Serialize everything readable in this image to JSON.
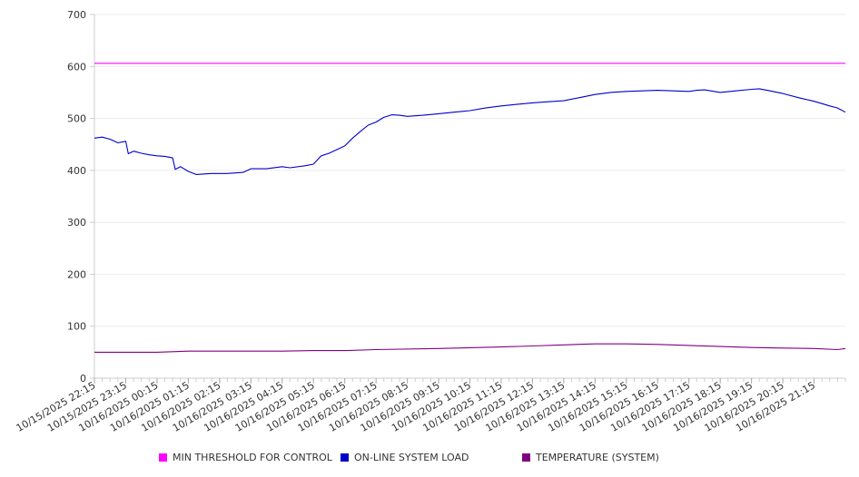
{
  "chart_data": {
    "type": "line",
    "title": "",
    "xlabel": "",
    "ylabel": "",
    "ylim": [
      0,
      700
    ],
    "y_ticks": [
      0,
      100,
      200,
      300,
      400,
      500,
      600,
      700
    ],
    "grid": true,
    "legend_position": "bottom",
    "x_tick_labels": [
      "10/15/2025 22:15",
      "10/15/2025 23:15",
      "10/16/2025 00:15",
      "10/16/2025 01:15",
      "10/16/2025 02:15",
      "10/16/2025 03:15",
      "10/16/2025 04:15",
      "10/16/2025 05:15",
      "10/16/2025 06:15",
      "10/16/2025 07:15",
      "10/16/2025 08:15",
      "10/16/2025 09:15",
      "10/16/2025 10:15",
      "10/16/2025 11:15",
      "10/16/2025 12:15",
      "10/16/2025 13:15",
      "10/16/2025 14:15",
      "10/16/2025 15:15",
      "10/16/2025 16:15",
      "10/16/2025 17:15",
      "10/16/2025 18:15",
      "10/16/2025 19:15",
      "10/16/2025 20:15",
      "10/16/2025 21:15"
    ],
    "x_start": "10/15/2025 22:15",
    "x_end": "10/16/2025 22:15",
    "series": [
      {
        "name": "MIN THRESHOLD FOR CONTROL",
        "color": "#ff00ff",
        "points": [
          [
            "10/15/2025 22:15",
            606
          ],
          [
            "10/16/2025 22:15",
            606
          ]
        ]
      },
      {
        "name": "ON-LINE SYSTEM LOAD",
        "color": "#0000cc",
        "points": [
          [
            "10/15/2025 22:15",
            462
          ],
          [
            "10/15/2025 22:30",
            464
          ],
          [
            "10/15/2025 22:45",
            460
          ],
          [
            "10/15/2025 23:00",
            453
          ],
          [
            "10/15/2025 23:15",
            456
          ],
          [
            "10/15/2025 23:20",
            432
          ],
          [
            "10/15/2025 23:30",
            437
          ],
          [
            "10/15/2025 23:45",
            433
          ],
          [
            "10/16/2025 00:00",
            430
          ],
          [
            "10/16/2025 00:15",
            428
          ],
          [
            "10/16/2025 00:30",
            427
          ],
          [
            "10/16/2025 00:45",
            424
          ],
          [
            "10/16/2025 00:50",
            402
          ],
          [
            "10/16/2025 01:00",
            407
          ],
          [
            "10/16/2025 01:15",
            398
          ],
          [
            "10/16/2025 01:30",
            392
          ],
          [
            "10/16/2025 02:00",
            394
          ],
          [
            "10/16/2025 02:30",
            394
          ],
          [
            "10/16/2025 03:00",
            396
          ],
          [
            "10/16/2025 03:15",
            403
          ],
          [
            "10/16/2025 03:45",
            403
          ],
          [
            "10/16/2025 04:15",
            407
          ],
          [
            "10/16/2025 04:30",
            405
          ],
          [
            "10/16/2025 05:00",
            409
          ],
          [
            "10/16/2025 05:15",
            412
          ],
          [
            "10/16/2025 05:30",
            428
          ],
          [
            "10/16/2025 05:45",
            433
          ],
          [
            "10/16/2025 06:15",
            447
          ],
          [
            "10/16/2025 06:30",
            462
          ],
          [
            "10/16/2025 06:45",
            475
          ],
          [
            "10/16/2025 07:00",
            487
          ],
          [
            "10/16/2025 07:15",
            493
          ],
          [
            "10/16/2025 07:30",
            502
          ],
          [
            "10/16/2025 07:45",
            507
          ],
          [
            "10/16/2025 08:00",
            506
          ],
          [
            "10/16/2025 08:15",
            504
          ],
          [
            "10/16/2025 08:45",
            506
          ],
          [
            "10/16/2025 09:15",
            509
          ],
          [
            "10/16/2025 09:45",
            512
          ],
          [
            "10/16/2025 10:15",
            515
          ],
          [
            "10/16/2025 10:45",
            520
          ],
          [
            "10/16/2025 11:15",
            524
          ],
          [
            "10/16/2025 11:45",
            527
          ],
          [
            "10/16/2025 12:15",
            530
          ],
          [
            "10/16/2025 12:45",
            532
          ],
          [
            "10/16/2025 13:15",
            534
          ],
          [
            "10/16/2025 13:45",
            540
          ],
          [
            "10/16/2025 14:15",
            546
          ],
          [
            "10/16/2025 14:45",
            550
          ],
          [
            "10/16/2025 15:15",
            552
          ],
          [
            "10/16/2025 15:45",
            553
          ],
          [
            "10/16/2025 16:15",
            554
          ],
          [
            "10/16/2025 16:45",
            553
          ],
          [
            "10/16/2025 17:15",
            552
          ],
          [
            "10/16/2025 17:30",
            554
          ],
          [
            "10/16/2025 17:45",
            555
          ],
          [
            "10/16/2025 18:15",
            550
          ],
          [
            "10/16/2025 18:45",
            553
          ],
          [
            "10/16/2025 19:15",
            556
          ],
          [
            "10/16/2025 19:30",
            557
          ],
          [
            "10/16/2025 19:45",
            554
          ],
          [
            "10/16/2025 20:15",
            548
          ],
          [
            "10/16/2025 20:45",
            540
          ],
          [
            "10/16/2025 21:15",
            533
          ],
          [
            "10/16/2025 21:45",
            524
          ],
          [
            "10/16/2025 22:00",
            520
          ],
          [
            "10/16/2025 22:15",
            512
          ]
        ]
      },
      {
        "name": "TEMPERATURE (SYSTEM)",
        "color": "#800080",
        "points": [
          [
            "10/15/2025 22:15",
            50
          ],
          [
            "10/16/2025 00:15",
            50
          ],
          [
            "10/16/2025 01:15",
            52
          ],
          [
            "10/16/2025 04:15",
            52
          ],
          [
            "10/16/2025 05:15",
            53
          ],
          [
            "10/16/2025 06:15",
            53
          ],
          [
            "10/16/2025 07:15",
            55
          ],
          [
            "10/16/2025 09:15",
            57
          ],
          [
            "10/16/2025 11:15",
            60
          ],
          [
            "10/16/2025 12:15",
            62
          ],
          [
            "10/16/2025 13:15",
            64
          ],
          [
            "10/16/2025 14:15",
            66
          ],
          [
            "10/16/2025 15:15",
            66
          ],
          [
            "10/16/2025 16:15",
            65
          ],
          [
            "10/16/2025 17:15",
            63
          ],
          [
            "10/16/2025 18:15",
            61
          ],
          [
            "10/16/2025 19:15",
            59
          ],
          [
            "10/16/2025 20:15",
            58
          ],
          [
            "10/16/2025 21:15",
            57
          ],
          [
            "10/16/2025 22:00",
            55
          ],
          [
            "10/16/2025 22:15",
            57
          ]
        ]
      }
    ]
  }
}
